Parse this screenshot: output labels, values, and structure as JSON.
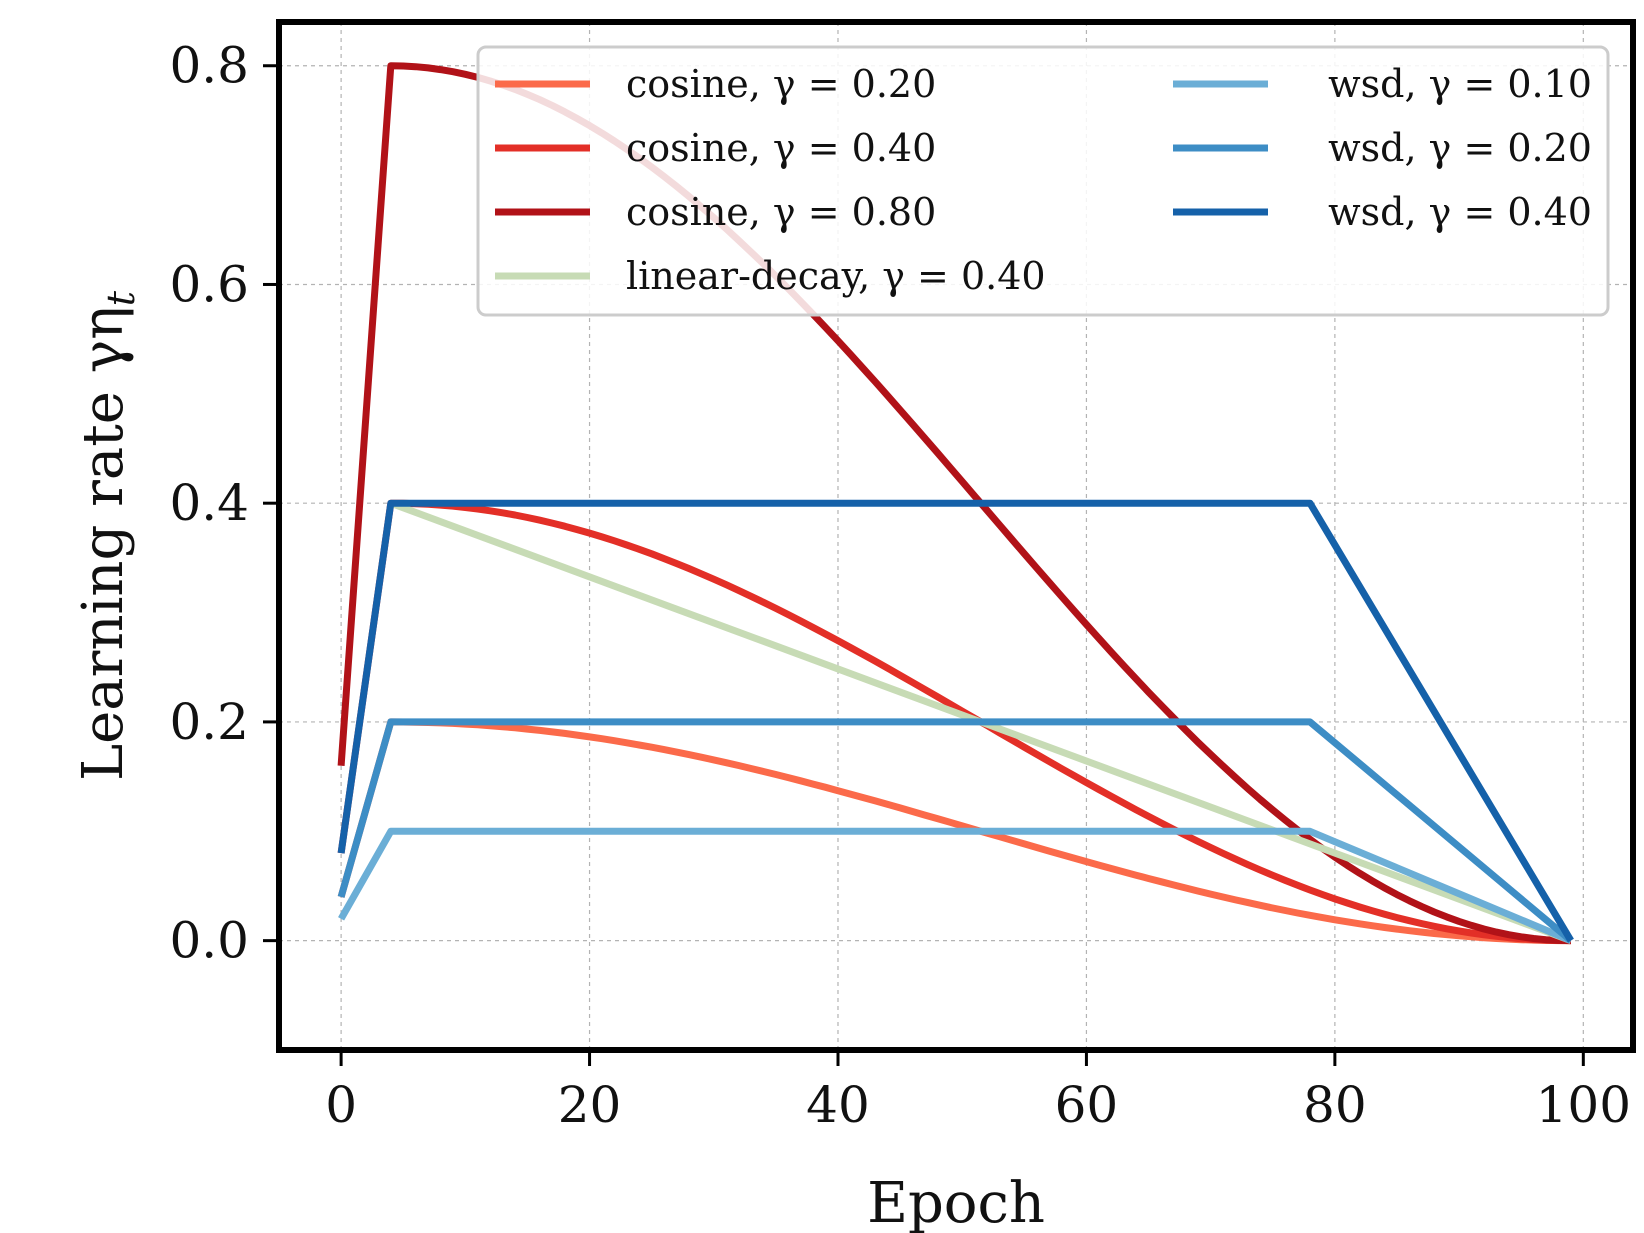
{
  "chart_data": {
    "type": "line",
    "xlabel": "Epoch",
    "ylabel": "Learning rate γη",
    "ylabel_subscript": "t",
    "xlim": [
      -5,
      104
    ],
    "ylim": [
      -0.1,
      0.84
    ],
    "xticks": [
      0,
      20,
      40,
      60,
      80,
      100
    ],
    "yticks": [
      0.0,
      0.2,
      0.4,
      0.6,
      0.8
    ],
    "xtick_labels": [
      "0",
      "20",
      "40",
      "60",
      "80",
      "100"
    ],
    "ytick_labels": [
      "0.0",
      "0.2",
      "0.4",
      "0.6",
      "0.8"
    ],
    "grid": true,
    "legend_placement": "top-right",
    "series": [
      {
        "name": "cosine, γ = 0.20",
        "schedule": "cosine",
        "gamma": 0.2,
        "color": "#fb6a4a",
        "x": [
          0,
          4,
          10,
          20,
          30,
          40,
          50,
          60,
          70,
          80,
          90,
          99
        ],
        "y": [
          0.04,
          0.2,
          0.197,
          0.18,
          0.156,
          0.128,
          0.097,
          0.066,
          0.039,
          0.016,
          0.004,
          0.0
        ]
      },
      {
        "name": "cosine, γ = 0.40",
        "schedule": "cosine",
        "gamma": 0.4,
        "color": "#e32f27",
        "x": [
          0,
          4,
          10,
          20,
          30,
          40,
          50,
          60,
          70,
          80,
          90,
          99
        ],
        "y": [
          0.08,
          0.4,
          0.391,
          0.36,
          0.311,
          0.254,
          0.193,
          0.133,
          0.078,
          0.033,
          0.007,
          0.0
        ]
      },
      {
        "name": "cosine, γ = 0.80",
        "schedule": "cosine",
        "gamma": 0.8,
        "color": "#b11218",
        "x": [
          0,
          4,
          10,
          20,
          30,
          40,
          50,
          60,
          70,
          80,
          90,
          99
        ],
        "y": [
          0.16,
          0.8,
          0.782,
          0.72,
          0.622,
          0.508,
          0.386,
          0.266,
          0.157,
          0.066,
          0.015,
          0.0
        ]
      },
      {
        "name": "linear-decay, γ = 0.40",
        "schedule": "linear-decay",
        "gamma": 0.4,
        "color": "#c7dbb5",
        "x": [
          4,
          99
        ],
        "y": [
          0.4,
          0.0
        ]
      },
      {
        "name": "wsd, γ = 0.10",
        "schedule": "wsd",
        "gamma": 0.1,
        "color": "#6baed6",
        "x": [
          0,
          4,
          78,
          99
        ],
        "y": [
          0.02,
          0.1,
          0.1,
          0.0
        ]
      },
      {
        "name": "wsd, γ = 0.20",
        "schedule": "wsd",
        "gamma": 0.2,
        "color": "#3d8dc5",
        "x": [
          0,
          4,
          78,
          99
        ],
        "y": [
          0.04,
          0.2,
          0.2,
          0.0
        ]
      },
      {
        "name": "wsd, γ = 0.40",
        "schedule": "wsd",
        "gamma": 0.4,
        "color": "#1561a9",
        "x": [
          0,
          4,
          78,
          99
        ],
        "y": [
          0.08,
          0.4,
          0.4,
          0.0
        ]
      }
    ]
  }
}
